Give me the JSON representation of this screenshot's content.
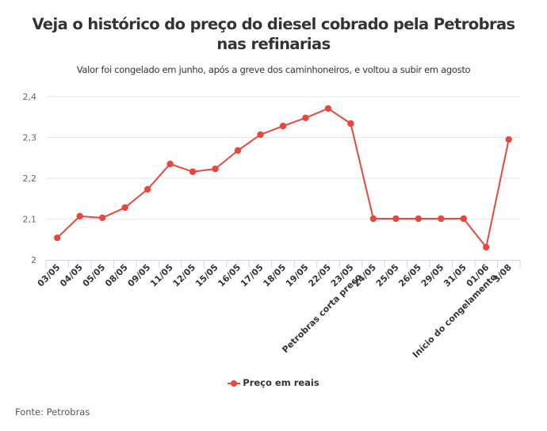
{
  "title": "Veja o histórico do preço do diesel cobrado pela Petrobras nas refinarias",
  "subtitle": "Valor foi congelado em junho, após a greve dos caminhoneiros, e voltou a subir em agosto",
  "source": "Fonte: Petrobras",
  "chart_data": {
    "type": "line",
    "title": "Veja o histórico do preço do diesel cobrado pela Petrobras nas refinarias",
    "categories": [
      "03/05",
      "04/05",
      "05/05",
      "08/05",
      "09/05",
      "11/05",
      "12/05",
      "15/05",
      "16/05",
      "17/05",
      "18/05",
      "19/05",
      "22/05",
      "23/05",
      "24/05",
      "25/05",
      "26/05",
      "29/05",
      "31/05",
      "01/06",
      "3/08"
    ],
    "annotations": [
      {
        "category": "23/05",
        "text": "Petrobras corta preço"
      },
      {
        "category": "01/06",
        "text": "Início do congelamento"
      }
    ],
    "series": [
      {
        "name": "Preço em reais",
        "color": "#e8473e",
        "values": [
          2.054,
          2.107,
          2.103,
          2.128,
          2.173,
          2.235,
          2.216,
          2.223,
          2.268,
          2.307,
          2.328,
          2.348,
          2.371,
          2.334,
          2.101,
          2.101,
          2.101,
          2.101,
          2.101,
          2.031,
          2.295
        ]
      }
    ],
    "ylim": [
      2,
      2.4
    ],
    "yticks": [
      "2",
      "2,1",
      "2,2",
      "2,3",
      "2,4"
    ],
    "grid": true,
    "legend": "bottom-center"
  }
}
